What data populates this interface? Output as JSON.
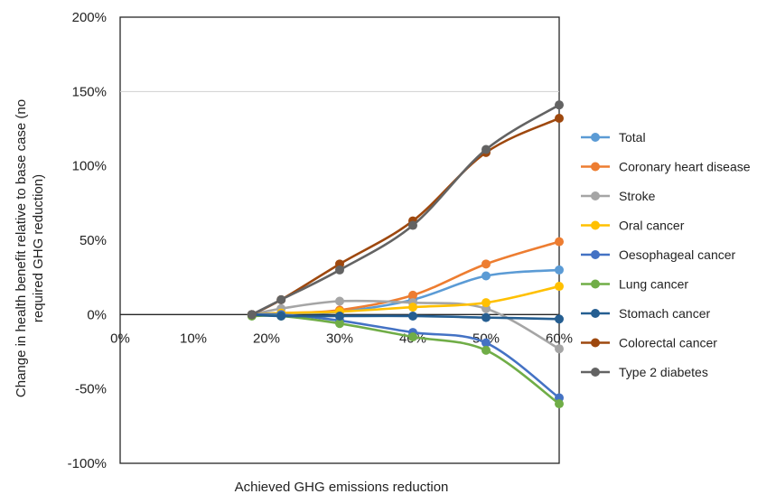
{
  "chart_data": {
    "type": "line",
    "title": "",
    "xlabel": "Achieved GHG emissions reduction",
    "ylabel_lines": [
      "Change in health benefit relative to base case (no",
      "required GHG reduction)"
    ],
    "x_ticks": [
      "0%",
      "10%",
      "20%",
      "30%",
      "40%",
      "50%",
      "60%"
    ],
    "y_ticks": [
      "-100%",
      "-50%",
      "0%",
      "50%",
      "100%",
      "150%",
      "200%"
    ],
    "xlim": [
      0,
      60
    ],
    "ylim": [
      -100,
      200
    ],
    "grid": "horizontal at 0% and 150%",
    "legend_position": "right",
    "x": [
      18,
      22,
      30,
      40,
      50,
      60
    ],
    "series": [
      {
        "name": "Total",
        "color": "#5b9bd5",
        "values": [
          0,
          1,
          2,
          10,
          26,
          30
        ]
      },
      {
        "name": "Coronary heart disease",
        "color": "#ed7d31",
        "values": [
          0,
          1,
          3,
          13,
          34,
          49
        ]
      },
      {
        "name": "Stroke",
        "color": "#a5a5a5",
        "values": [
          0,
          4,
          9,
          8,
          4,
          -23
        ]
      },
      {
        "name": "Oral cancer",
        "color": "#ffc000",
        "values": [
          0,
          1,
          2,
          5,
          8,
          19
        ]
      },
      {
        "name": "Oesophageal cancer",
        "color": "#4472c4",
        "values": [
          0,
          0,
          -4,
          -12,
          -19,
          -56
        ]
      },
      {
        "name": "Lung cancer",
        "color": "#70ad47",
        "values": [
          -1,
          -1,
          -6,
          -15,
          -24,
          -60
        ]
      },
      {
        "name": "Stomach cancer",
        "color": "#255e91",
        "values": [
          0,
          -1,
          -1,
          -1,
          -2,
          -3
        ]
      },
      {
        "name": "Colorectal cancer",
        "color": "#9e480e",
        "values": [
          0,
          10,
          34,
          63,
          109,
          132
        ]
      },
      {
        "name": "Type 2 diabetes",
        "color": "#636363",
        "values": [
          0,
          10,
          30,
          60,
          111,
          141
        ]
      }
    ]
  }
}
